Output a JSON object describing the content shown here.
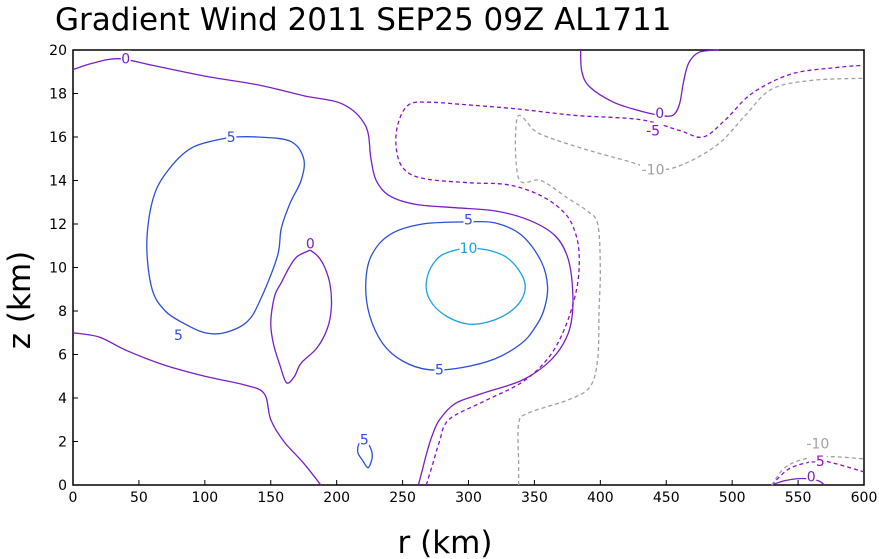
{
  "chart_data": {
    "type": "contour",
    "title": "Gradient Wind 2011 SEP25 09Z  AL1711",
    "xlabel": "r (km)",
    "ylabel": "z (km)",
    "xlim": [
      0,
      600
    ],
    "ylim": [
      0,
      20
    ],
    "xticks": [
      "0",
      "50",
      "100",
      "150",
      "200",
      "250",
      "300",
      "350",
      "400",
      "450",
      "500",
      "550",
      "600"
    ],
    "yticks": [
      "0",
      "2",
      "4",
      "6",
      "8",
      "10",
      "12",
      "14",
      "16",
      "18",
      "20"
    ],
    "grid": false,
    "colors": {
      "10": "#1aa3dc",
      "5": "#2d4fd6",
      "0": "#7a1fc4",
      "-5": "#8a10c8",
      "-10": "#a0a0a0"
    },
    "contours": [
      {
        "level": 0,
        "points": [
          [
            0,
            19.1
          ],
          [
            15,
            19.4
          ],
          [
            35,
            19.6
          ],
          [
            60,
            19.3
          ],
          [
            100,
            18.8
          ],
          [
            140,
            18.4
          ],
          [
            175,
            17.9
          ],
          [
            205,
            17.5
          ],
          [
            222,
            16.5
          ],
          [
            226,
            15
          ],
          [
            230,
            14
          ],
          [
            240,
            13.3
          ],
          [
            260,
            12.9
          ],
          [
            290,
            12.75
          ],
          [
            320,
            12.6
          ],
          [
            345,
            12.2
          ],
          [
            365,
            11.5
          ],
          [
            375,
            10.5
          ],
          [
            379,
            9
          ],
          [
            378,
            7.5
          ],
          [
            372,
            6.5
          ],
          [
            360,
            5.6
          ],
          [
            340,
            4.8
          ],
          [
            310,
            4.2
          ],
          [
            290,
            3.75
          ],
          [
            278,
            3
          ],
          [
            272,
            2.2
          ],
          [
            268,
            1.4
          ],
          [
            265,
            0.7
          ],
          [
            262,
            0
          ]
        ]
      },
      {
        "level": 0,
        "points": [
          [
            0,
            7
          ],
          [
            20,
            6.8
          ],
          [
            40,
            6.2
          ],
          [
            70,
            5.5
          ],
          [
            100,
            5
          ],
          [
            130,
            4.6
          ],
          [
            145,
            4.2
          ],
          [
            150,
            3
          ],
          [
            160,
            2
          ],
          [
            175,
            1
          ],
          [
            188,
            0
          ]
        ]
      },
      {
        "level": 0,
        "points": [
          [
            180,
            10.8
          ],
          [
            170,
            10.5
          ],
          [
            164,
            10
          ],
          [
            158,
            9.3
          ],
          [
            153,
            8.7
          ],
          [
            150,
            7.5
          ],
          [
            152,
            6.5
          ],
          [
            157,
            5.5
          ],
          [
            162,
            4.7
          ],
          [
            168,
            5
          ],
          [
            173,
            5.6
          ],
          [
            185,
            6.3
          ],
          [
            193,
            7.2
          ],
          [
            196,
            8.2
          ],
          [
            195,
            9.2
          ],
          [
            191,
            10
          ],
          [
            186,
            10.5
          ],
          [
            180,
            10.8
          ]
        ]
      },
      {
        "level": 0,
        "points": [
          [
            385,
            20
          ],
          [
            386,
            19
          ],
          [
            392,
            18.3
          ],
          [
            410,
            17.6
          ],
          [
            430,
            17.2
          ],
          [
            445,
            17
          ],
          [
            455,
            17
          ],
          [
            460,
            17.5
          ],
          [
            463,
            18.5
          ],
          [
            467,
            19.4
          ],
          [
            475,
            19.9
          ],
          [
            490,
            20
          ]
        ]
      },
      {
        "level": 0,
        "points": [
          [
            530,
            0
          ],
          [
            540,
            0.2
          ],
          [
            553,
            0.3
          ],
          [
            565,
            0.2
          ],
          [
            570,
            0
          ]
        ]
      },
      {
        "level": 5,
        "points": [
          [
            120,
            16
          ],
          [
            140,
            16
          ],
          [
            165,
            15.8
          ],
          [
            175,
            15
          ],
          [
            173,
            14
          ],
          [
            165,
            13
          ],
          [
            158,
            11.8
          ],
          [
            155,
            10.5
          ],
          [
            142,
            8.5
          ],
          [
            132,
            7.5
          ],
          [
            115,
            7
          ],
          [
            100,
            7
          ],
          [
            85,
            7.4
          ],
          [
            70,
            8
          ],
          [
            60,
            9
          ],
          [
            56,
            11
          ],
          [
            60,
            13
          ],
          [
            70,
            14.3
          ],
          [
            90,
            15.5
          ],
          [
            120,
            16
          ]
        ]
      },
      {
        "level": 5,
        "points": [
          [
            300,
            12.1
          ],
          [
            320,
            12.05
          ],
          [
            340,
            11.5
          ],
          [
            355,
            10.3
          ],
          [
            360,
            9.1
          ],
          [
            357,
            8
          ],
          [
            350,
            7.2
          ],
          [
            340,
            6.5
          ],
          [
            320,
            5.8
          ],
          [
            295,
            5.4
          ],
          [
            270,
            5.3
          ],
          [
            250,
            5.7
          ],
          [
            235,
            6.5
          ],
          [
            225,
            7.8
          ],
          [
            222,
            9.2
          ],
          [
            226,
            10.5
          ],
          [
            240,
            11.5
          ],
          [
            265,
            12
          ],
          [
            300,
            12.1
          ]
        ]
      },
      {
        "level": 5,
        "points": [
          [
            221,
            2
          ],
          [
            225,
            1.8
          ],
          [
            227,
            1.3
          ],
          [
            224,
            0.8
          ],
          [
            220,
            1.1
          ],
          [
            216,
            1.5
          ],
          [
            217,
            1.9
          ],
          [
            221,
            2
          ]
        ]
      },
      {
        "level": 10,
        "points": [
          [
            300,
            10.9
          ],
          [
            315,
            10.8
          ],
          [
            328,
            10.5
          ],
          [
            338,
            9.9
          ],
          [
            343,
            9.2
          ],
          [
            340,
            8.5
          ],
          [
            330,
            7.9
          ],
          [
            315,
            7.5
          ],
          [
            300,
            7.4
          ],
          [
            285,
            7.7
          ],
          [
            273,
            8.3
          ],
          [
            268,
            9
          ],
          [
            270,
            9.8
          ],
          [
            278,
            10.5
          ],
          [
            290,
            10.8
          ],
          [
            300,
            10.9
          ]
        ]
      },
      {
        "level": -5,
        "points": [
          [
            268,
            0
          ],
          [
            273,
            1
          ],
          [
            278,
            2
          ],
          [
            285,
            3
          ],
          [
            310,
            3.8
          ],
          [
            340,
            4.7
          ],
          [
            360,
            5.8
          ],
          [
            373,
            7.2
          ],
          [
            382,
            9
          ],
          [
            384,
            10.5
          ],
          [
            381,
            11.6
          ],
          [
            373,
            12.5
          ],
          [
            355,
            13.3
          ],
          [
            330,
            13.8
          ],
          [
            300,
            13.9
          ],
          [
            265,
            14.1
          ],
          [
            250,
            14.6
          ],
          [
            245,
            15.6
          ],
          [
            247,
            16.7
          ],
          [
            255,
            17.5
          ],
          [
            270,
            17.6
          ],
          [
            295,
            17.5
          ],
          [
            335,
            17.3
          ],
          [
            380,
            17
          ],
          [
            430,
            16.8
          ],
          [
            460,
            16.3
          ],
          [
            478,
            16
          ],
          [
            495,
            16.8
          ],
          [
            515,
            18
          ],
          [
            545,
            18.9
          ],
          [
            580,
            19.2
          ],
          [
            600,
            19.3
          ]
        ]
      },
      {
        "level": -5,
        "points": [
          [
            530,
            0
          ],
          [
            542,
            0.7
          ],
          [
            555,
            1
          ],
          [
            570,
            1.1
          ],
          [
            600,
            0.6
          ]
        ]
      },
      {
        "level": -10,
        "points": [
          [
            338,
            0
          ],
          [
            338,
            1
          ],
          [
            338,
            2.8
          ],
          [
            345,
            3.3
          ],
          [
            375,
            3.9
          ],
          [
            392,
            4.5
          ],
          [
            398,
            5.8
          ],
          [
            399,
            8
          ],
          [
            400,
            10
          ],
          [
            398,
            12
          ],
          [
            390,
            12.6
          ],
          [
            375,
            13.2
          ],
          [
            355,
            14
          ],
          [
            338,
            14.1
          ],
          [
            337,
            16.9
          ],
          [
            350,
            16.3
          ],
          [
            360,
            16
          ],
          [
            385,
            15.5
          ],
          [
            420,
            14.9
          ],
          [
            445,
            14.5
          ],
          [
            465,
            14.8
          ],
          [
            490,
            15.7
          ],
          [
            510,
            17
          ],
          [
            530,
            18.2
          ],
          [
            560,
            18.6
          ],
          [
            600,
            18.7
          ]
        ]
      },
      {
        "level": -10,
        "points": [
          [
            530,
            0
          ],
          [
            540,
            0.8
          ],
          [
            555,
            1.2
          ],
          [
            575,
            1.3
          ],
          [
            600,
            1.2
          ]
        ]
      }
    ],
    "labels": [
      {
        "text": "0",
        "x": 40,
        "y": 19.6,
        "level": 0
      },
      {
        "text": "5",
        "x": 120,
        "y": 16,
        "level": 5
      },
      {
        "text": "0",
        "x": 180,
        "y": 11.1,
        "level": 0
      },
      {
        "text": "5",
        "x": 80,
        "y": 6.9,
        "level": 5
      },
      {
        "text": "5",
        "x": 300,
        "y": 12.2,
        "level": 5
      },
      {
        "text": "10",
        "x": 300,
        "y": 10.9,
        "level": 10
      },
      {
        "text": "5",
        "x": 278,
        "y": 5.3,
        "level": 5
      },
      {
        "text": "5",
        "x": 221,
        "y": 2.1,
        "level": 5
      },
      {
        "text": "0",
        "x": 445,
        "y": 17.1,
        "level": 0
      },
      {
        "text": "-5",
        "x": 440,
        "y": 16.3,
        "level": -5
      },
      {
        "text": "-10",
        "x": 440,
        "y": 14.5,
        "level": -10
      },
      {
        "text": "-10",
        "x": 565,
        "y": 1.9,
        "level": -10
      },
      {
        "text": "-5",
        "x": 565,
        "y": 1.1,
        "level": -5
      },
      {
        "text": "0",
        "x": 560,
        "y": 0.4,
        "level": 0
      }
    ]
  }
}
